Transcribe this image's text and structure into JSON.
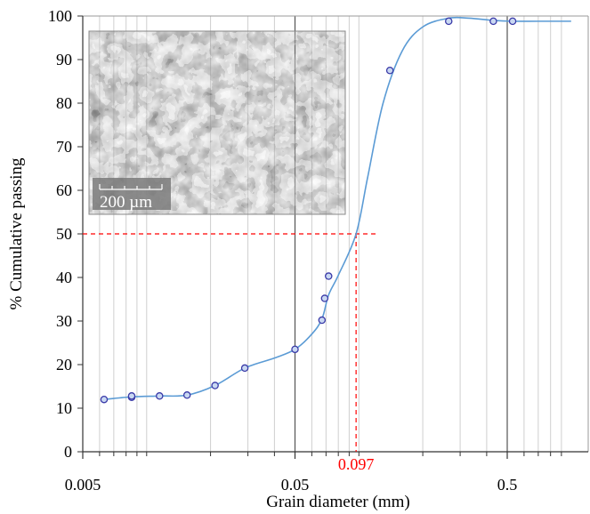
{
  "chart_data": {
    "type": "line",
    "xlabel": "Grain diameter (mm)",
    "ylabel": "% Cumulative passing",
    "x_scale": "log",
    "xlim": [
      0.005,
      1
    ],
    "ylim": [
      0,
      100
    ],
    "x_ticks": [
      {
        "value": 0.005,
        "label": "0.005"
      },
      {
        "value": 0.05,
        "label": "0.05"
      },
      {
        "value": 0.5,
        "label": "0.5"
      }
    ],
    "y_ticks": [
      0,
      10,
      20,
      30,
      40,
      50,
      60,
      70,
      80,
      90,
      100
    ],
    "grid": "vertical log gridlines",
    "series": [
      {
        "color": "#5b9bd5",
        "marker_color": "#3a3aa8",
        "x": [
          0.0063,
          0.0085,
          0.0085,
          0.0115,
          0.0155,
          0.021,
          0.029,
          0.05,
          0.067,
          0.069,
          0.072,
          0.14,
          0.265,
          0.43,
          0.53
        ],
        "y": [
          12,
          12.5,
          12.8,
          12.8,
          13,
          15.2,
          19.2,
          23.5,
          30.2,
          35.2,
          40.3,
          87.5,
          98.8,
          98.8,
          98.8
        ]
      }
    ],
    "curve": {
      "x": [
        0.0063,
        0.0085,
        0.0115,
        0.0155,
        0.021,
        0.029,
        0.04,
        0.05,
        0.06,
        0.067,
        0.072,
        0.08,
        0.097,
        0.11,
        0.13,
        0.16,
        0.2,
        0.265,
        0.33,
        0.43,
        0.53,
        0.7,
        1.0
      ],
      "y": [
        12,
        12.6,
        12.8,
        13,
        15.2,
        19.2,
        21.5,
        23.5,
        27,
        30.5,
        36,
        40.5,
        50,
        63,
        80,
        92,
        97.5,
        99.5,
        99.5,
        99,
        98.8,
        98.8,
        98.8
      ]
    },
    "reference": {
      "x": 0.097,
      "y": 50,
      "x_label": "0.097",
      "color": "#ff0000"
    },
    "inset": {
      "description_label": "200 µm"
    }
  }
}
